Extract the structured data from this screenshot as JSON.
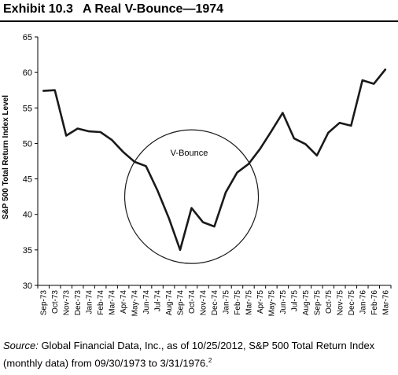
{
  "title": {
    "exhibit": "Exhibit 10.3",
    "text": "A Real V-Bounce—1974"
  },
  "source": {
    "label": "Source:",
    "text": "Global Financial Data, Inc., as of 10/25/2012, S&P 500 Total Return Index (monthly data) from 09/30/1973 to 3/31/1976.",
    "footnote": "2"
  },
  "chart_data": {
    "type": "line",
    "ylabel": "S&P 500 Total Return Index Level",
    "xlabel": "",
    "ylim": [
      30,
      65
    ],
    "yticks": [
      30,
      35,
      40,
      45,
      50,
      55,
      60,
      65
    ],
    "grid": false,
    "categories": [
      "Sep-73",
      "Oct-73",
      "Nov-73",
      "Dec-73",
      "Jan-74",
      "Feb-74",
      "Mar-74",
      "Apr-74",
      "May-74",
      "Jun-74",
      "Jul-74",
      "Aug-74",
      "Sep-74",
      "Oct-74",
      "Nov-74",
      "Dec-74",
      "Jan-75",
      "Feb-75",
      "Mar-75",
      "Apr-75",
      "May-75",
      "Jun-75",
      "Jul-75",
      "Aug-75",
      "Sep-75",
      "Oct-75",
      "Nov-75",
      "Dec-75",
      "Jan-76",
      "Feb-76",
      "Mar-76"
    ],
    "series": [
      {
        "values": [
          57.4,
          57.5,
          51.1,
          52.1,
          51.7,
          51.6,
          50.5,
          48.8,
          47.4,
          46.8,
          43.4,
          39.5,
          35.0,
          40.9,
          38.9,
          38.3,
          43.1,
          45.9,
          47.1,
          49.2,
          51.7,
          54.3,
          50.7,
          49.9,
          48.3,
          51.5,
          52.9,
          52.5,
          58.9,
          58.4,
          60.4
        ],
        "color": "#1a1a1a"
      }
    ],
    "annotations": [
      {
        "text": "V-Bounce",
        "shape": "circle",
        "center": [
          "Oct-74",
          42.5
        ]
      }
    ]
  }
}
